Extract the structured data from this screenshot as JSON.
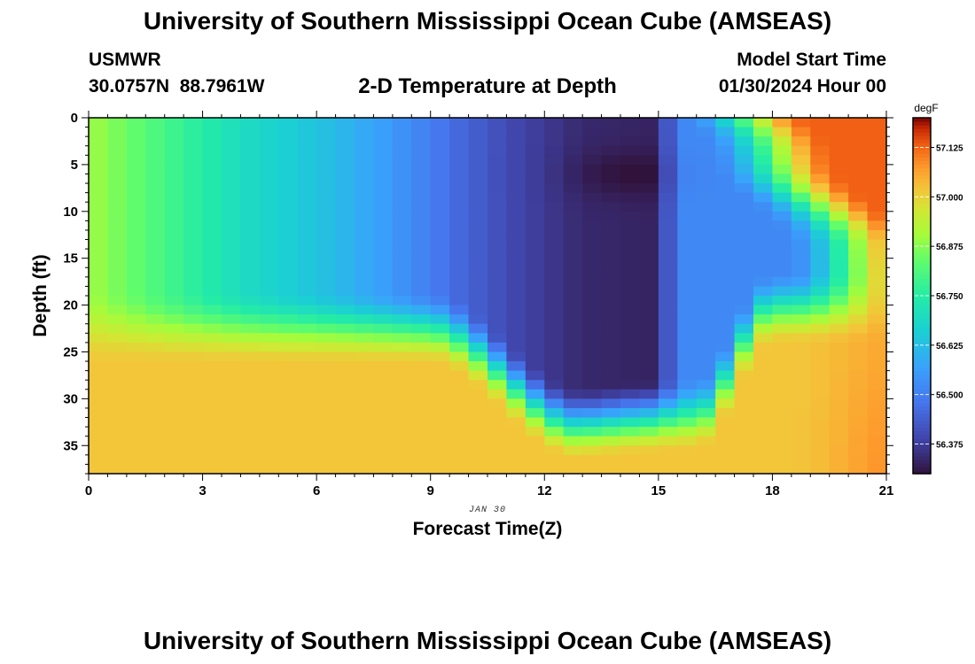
{
  "header": {
    "title": "University of Southern Mississippi Ocean Cube (AMSEAS)",
    "station": "USMWR",
    "coordinates": "30.0757N  88.7961W",
    "subtitle": "2-D Temperature at Depth",
    "model_start_label": "Model Start Time",
    "model_start_date": "01/30/2024 Hour 00"
  },
  "footer": {
    "title": "University of Southern Mississippi Ocean Cube (AMSEAS)"
  },
  "chart_data": {
    "type": "heatmap",
    "title": "2-D Temperature at Depth",
    "xlabel": "Forecast Time(Z)",
    "ylabel": "Depth (ft)",
    "x_date_label": "JAN 30",
    "xlim": [
      0,
      21
    ],
    "ylim": [
      0,
      38
    ],
    "y_inverted": true,
    "x_ticks": [
      0,
      3,
      6,
      9,
      12,
      15,
      18,
      21
    ],
    "y_ticks": [
      0,
      5,
      10,
      15,
      20,
      25,
      30,
      35
    ],
    "colorbar": {
      "unit": "degF",
      "min": 56.3,
      "max": 57.2,
      "tick_values": [
        56.375,
        56.5,
        56.625,
        56.75,
        56.875,
        57.0,
        57.125
      ],
      "tick_labels": [
        "56.375",
        "56.500",
        "56.625",
        "56.750",
        "56.875",
        "57.000",
        "57.125"
      ],
      "placement": "right"
    },
    "grid_resolution": {
      "time_step_hours": 0.5,
      "depth_step_ft": 1
    },
    "features": [
      {
        "description": "warm near-uniform water column",
        "time_range": [
          0,
          2
        ],
        "depth_range": [
          0,
          38
        ],
        "value": 56.92
      },
      {
        "description": "warm bottom layer",
        "time_range": [
          0,
          9
        ],
        "depth_range": [
          25,
          38
        ],
        "value": 57.02
      },
      {
        "description": "cold core minimum",
        "time_center": 14,
        "depth_center": 6,
        "value": 56.31
      },
      {
        "description": "warm surface layer",
        "time_range": [
          17,
          21
        ],
        "depth_range": [
          0,
          5
        ],
        "value": 57.15
      },
      {
        "description": "warm bottom layer late",
        "time_range": [
          18,
          21
        ],
        "depth_range": [
          25,
          38
        ],
        "value": 57.1
      }
    ]
  }
}
